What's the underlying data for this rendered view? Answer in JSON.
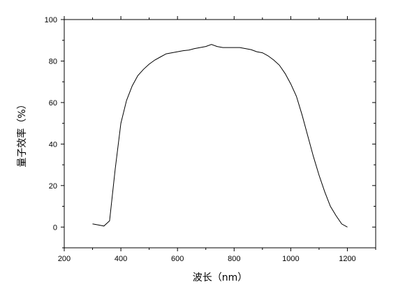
{
  "chart_data": {
    "type": "line",
    "title": "",
    "xlabel": "波长（nm）",
    "ylabel": "量子效率（%）",
    "xlim": [
      200,
      1300
    ],
    "ylim": [
      -10,
      100
    ],
    "xticks": [
      200,
      400,
      600,
      800,
      1000,
      1200
    ],
    "yticks": [
      0,
      20,
      40,
      60,
      80,
      100
    ],
    "grid": false,
    "legend": "none",
    "line_color": "#000000",
    "series": [
      {
        "x": [
          300,
          320,
          340,
          360,
          380,
          400,
          420,
          440,
          460,
          480,
          500,
          520,
          540,
          560,
          580,
          600,
          620,
          640,
          660,
          680,
          700,
          720,
          740,
          760,
          780,
          800,
          820,
          840,
          860,
          880,
          900,
          920,
          940,
          960,
          980,
          1000,
          1020,
          1040,
          1060,
          1080,
          1100,
          1120,
          1140,
          1160,
          1180,
          1200
        ],
        "values": [
          1.5,
          1,
          0.5,
          3,
          28,
          50,
          61,
          68,
          73,
          76,
          78.5,
          80.5,
          82,
          83.5,
          84,
          84.5,
          85,
          85.3,
          86,
          86.5,
          87,
          88,
          87,
          86.5,
          86.5,
          86.5,
          86.5,
          86,
          85.5,
          84.5,
          84,
          82.5,
          80.5,
          78,
          74,
          69,
          63,
          54,
          44,
          34,
          25,
          17,
          10,
          5.5,
          1.5,
          0
        ]
      }
    ]
  }
}
